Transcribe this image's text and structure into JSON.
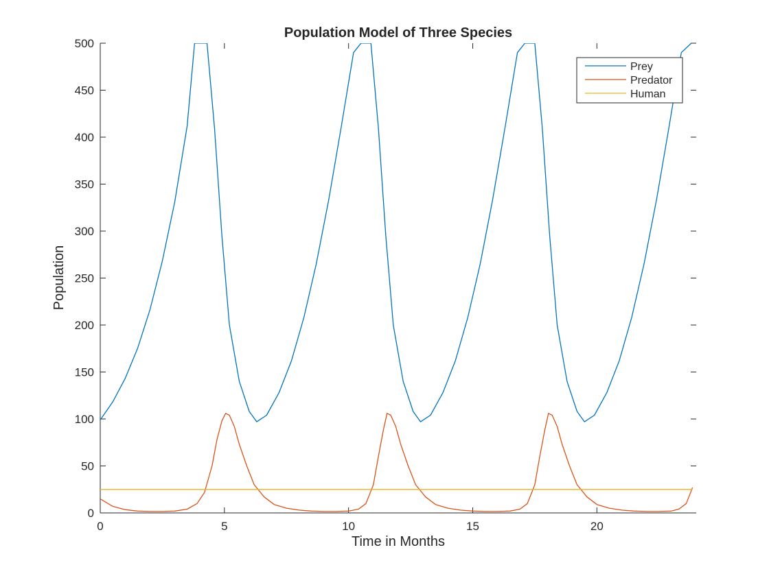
{
  "chart_data": {
    "type": "line",
    "title": "Population Model of Three Species",
    "xlabel": "Time in Months",
    "ylabel": "Population",
    "xlim": [
      0,
      24
    ],
    "ylim": [
      0,
      500
    ],
    "xticks": [
      0,
      5,
      10,
      15,
      20
    ],
    "xtick_labels": [
      "0",
      "5",
      "10",
      "15",
      "20"
    ],
    "yticks": [
      0,
      50,
      100,
      150,
      200,
      250,
      300,
      350,
      400,
      450,
      500
    ],
    "ytick_labels": [
      "0",
      "50",
      "100",
      "150",
      "200",
      "250",
      "300",
      "350",
      "400",
      "450",
      "500"
    ],
    "grid": false,
    "legend_position": "top-right",
    "series": [
      {
        "name": "Prey",
        "color": "#0072BD",
        "x": [
          0,
          0.5,
          1,
          1.5,
          2,
          2.5,
          3,
          3.5,
          3.8,
          4.3,
          4.6,
          4.9,
          5.2,
          5.6,
          6.0,
          6.3,
          6.7,
          7.2,
          7.7,
          8.2,
          8.7,
          9.2,
          9.7,
          10.2,
          10.5,
          10.9,
          11.2,
          11.5,
          11.8,
          12.2,
          12.6,
          12.9,
          13.3,
          13.8,
          14.3,
          14.8,
          15.3,
          15.8,
          16.3,
          16.8,
          17.1,
          17.5,
          17.8,
          18.1,
          18.4,
          18.8,
          19.2,
          19.5,
          19.9,
          20.4,
          20.9,
          21.4,
          21.9,
          22.4,
          22.9,
          23.4,
          23.8
        ],
        "y": [
          99,
          118,
          143,
          175,
          216,
          268,
          331,
          412,
          500,
          500,
          410,
          295,
          200,
          140,
          108,
          97,
          104,
          128,
          162,
          208,
          265,
          333,
          410,
          490,
          500,
          500,
          410,
          295,
          200,
          140,
          108,
          97,
          104,
          128,
          162,
          208,
          265,
          333,
          410,
          490,
          500,
          500,
          410,
          295,
          200,
          140,
          108,
          97,
          104,
          128,
          162,
          208,
          265,
          333,
          410,
          490,
          500
        ]
      },
      {
        "name": "Predator",
        "color": "#D95319",
        "x": [
          0,
          0.5,
          1,
          1.5,
          2,
          2.5,
          3,
          3.5,
          3.9,
          4.2,
          4.5,
          4.7,
          4.9,
          5.05,
          5.2,
          5.4,
          5.6,
          5.9,
          6.2,
          6.6,
          7.0,
          7.5,
          8.0,
          8.5,
          9.0,
          9.5,
          10.0,
          10.4,
          10.7,
          11.0,
          11.2,
          11.4,
          11.55,
          11.7,
          11.9,
          12.1,
          12.4,
          12.7,
          13.1,
          13.5,
          14.0,
          14.5,
          15.0,
          15.5,
          16.0,
          16.5,
          16.9,
          17.2,
          17.5,
          17.7,
          17.9,
          18.05,
          18.2,
          18.4,
          18.6,
          18.9,
          19.2,
          19.6,
          20.0,
          20.5,
          21.0,
          21.5,
          22.0,
          22.5,
          23.0,
          23.3,
          23.6,
          23.85
        ],
        "y": [
          15,
          7,
          3.5,
          2,
          1.5,
          1.5,
          2,
          4,
          10,
          22,
          50,
          78,
          98,
          106,
          104,
          92,
          73,
          50,
          30,
          17,
          9,
          5,
          3,
          2,
          1.5,
          1.5,
          2,
          4,
          10,
          30,
          60,
          88,
          106,
          104,
          92,
          73,
          50,
          30,
          17,
          9,
          5,
          3,
          2,
          1.5,
          1.5,
          2,
          4,
          10,
          30,
          60,
          88,
          106,
          104,
          92,
          73,
          50,
          30,
          17,
          9,
          5,
          3,
          2,
          1.5,
          1.5,
          2,
          4,
          10,
          27
        ]
      },
      {
        "name": "Human",
        "color": "#EDB120",
        "x": [
          0,
          23.85
        ],
        "y": [
          25,
          25
        ]
      }
    ]
  }
}
